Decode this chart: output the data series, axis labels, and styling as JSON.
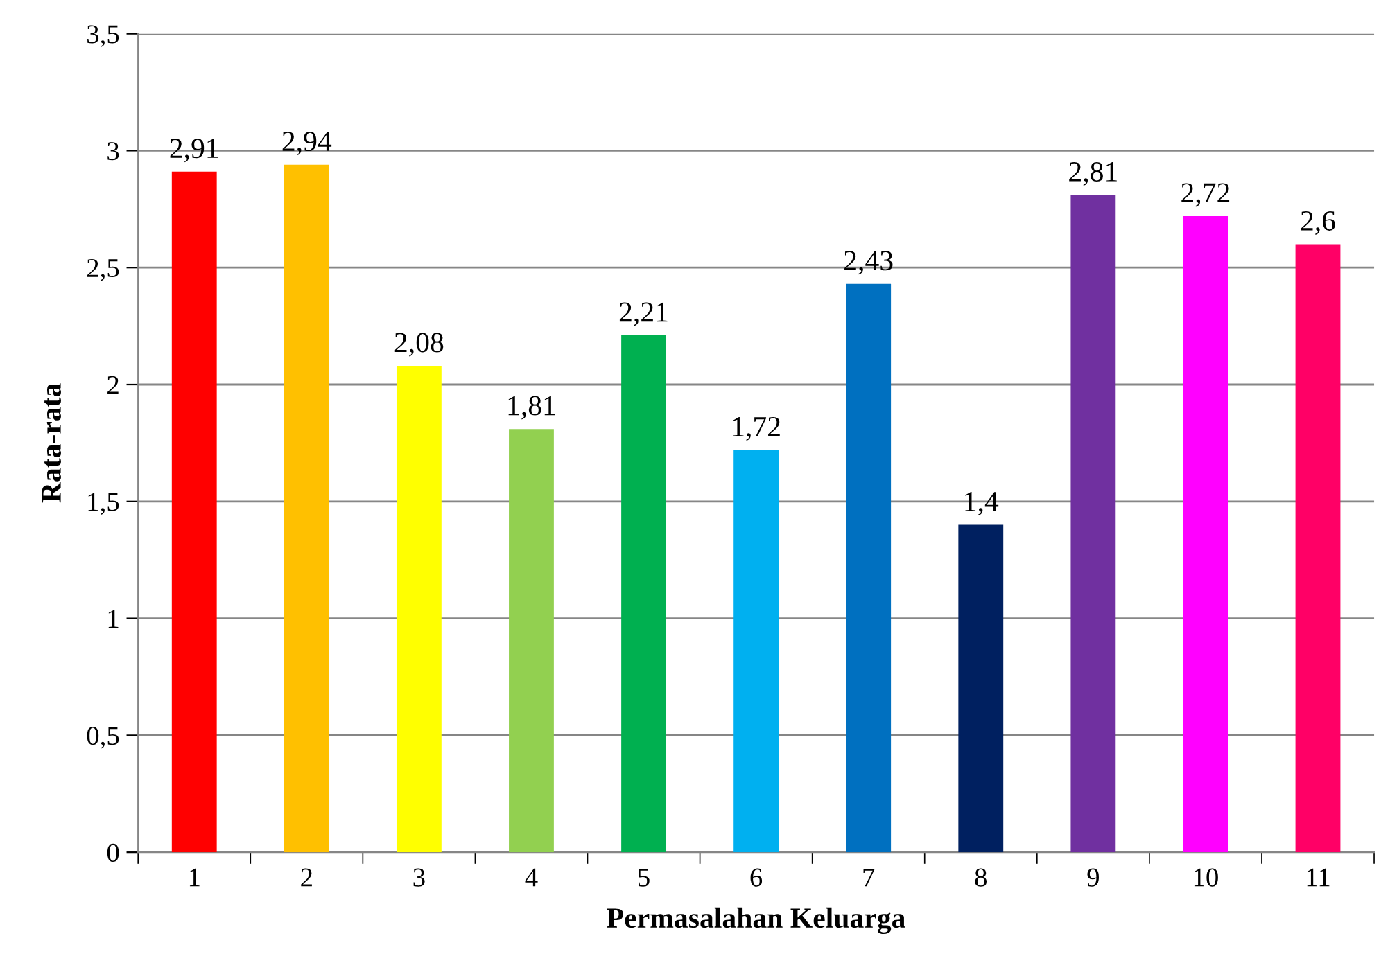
{
  "chart_data": {
    "type": "bar",
    "xlabel": "Permasalahan Keluarga",
    "ylabel": "Rata-rata",
    "categories": [
      "1",
      "2",
      "3",
      "4",
      "5",
      "6",
      "7",
      "8",
      "9",
      "10",
      "11"
    ],
    "values": [
      2.91,
      2.94,
      2.08,
      1.81,
      2.21,
      1.72,
      2.43,
      1.4,
      2.81,
      2.72,
      2.6
    ],
    "colors": [
      "#ff0000",
      "#ffc000",
      "#ffff00",
      "#92d050",
      "#00b050",
      "#00b0f0",
      "#0070c0",
      "#002060",
      "#7030a0",
      "#ff00ff",
      "#ff0066"
    ],
    "value_labels": [
      "2,91",
      "2,94",
      "2,08",
      "1,81",
      "2,21",
      "1,72",
      "2,43",
      "1,4",
      "2,81",
      "2,72",
      "2,6"
    ],
    "ylim": [
      0,
      3.5
    ],
    "yticks": [
      0,
      {
        "value": 0.5,
        "label": "0,5"
      },
      1,
      {
        "value": 1.5,
        "label": "1,5"
      },
      2,
      {
        "value": 2.5,
        "label": "2,5"
      },
      3,
      {
        "value": 3.5,
        "label": "3,5"
      }
    ],
    "grid": "y",
    "legend": false
  }
}
